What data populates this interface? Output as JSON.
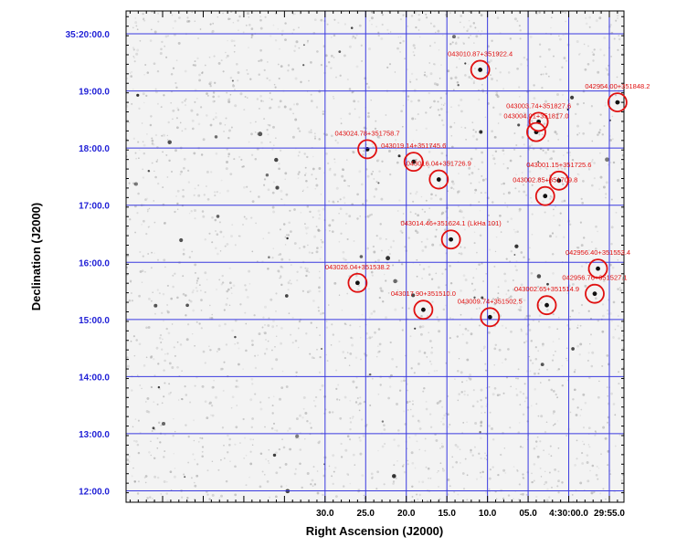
{
  "chart_data": {
    "type": "scatter",
    "title": "",
    "xlabel": "Right Ascension (J2000)",
    "ylabel": "Declination (J2000)",
    "x_units": "seconds of RA after 4h29m50s",
    "y_units": "arcminutes of Dec after 35d10m",
    "xlim": [
      64.5,
      3.2
    ],
    "ylim": [
      1.8,
      10.4
    ],
    "x_tick_labels": [
      "30.0",
      "25.0",
      "20.0",
      "15.0",
      "10.0",
      "05.0",
      "4:30:00.0",
      "29:55.0"
    ],
    "x_tick_values": [
      40,
      35,
      30,
      25,
      20,
      15,
      10,
      5
    ],
    "y_tick_labels": [
      "12:00.0",
      "13:00.0",
      "14:00.0",
      "15:00.0",
      "16:00.0",
      "17:00.0",
      "18:00.0",
      "19:00.0",
      "35:20:00.0"
    ],
    "y_tick_values": [
      2,
      3,
      4,
      5,
      6,
      7,
      8,
      9,
      10
    ],
    "grid": true,
    "background": "grayscale sky image",
    "marker": "red circle",
    "marker_color": "#e01010",
    "grid_color": "#3a3ae0",
    "sources": [
      {
        "label": "043010.87+351922.4",
        "x": 20.9,
        "y": 9.37
      },
      {
        "label": "042954.00+351848.2",
        "x": 4.0,
        "y": 8.8
      },
      {
        "label": "043003.74+351827.6",
        "x": 13.7,
        "y": 8.46
      },
      {
        "label": "043004.01+351817.0",
        "x": 14.0,
        "y": 8.28
      },
      {
        "label": "043024.78+351758.7",
        "x": 34.8,
        "y": 7.98
      },
      {
        "label": "043019.14+351745.6",
        "x": 29.1,
        "y": 7.76
      },
      {
        "label": "043016.04+351726.9",
        "x": 26.0,
        "y": 7.45
      },
      {
        "label": "043001.15+351725.6",
        "x": 11.2,
        "y": 7.43
      },
      {
        "label": "043002.85+351709.8",
        "x": 12.9,
        "y": 7.16
      },
      {
        "label": "043014.46+351624.1 (LkHa 101)",
        "x": 24.5,
        "y": 6.4
      },
      {
        "label": "042956.40+351553.4",
        "x": 6.4,
        "y": 5.89
      },
      {
        "label": "043026.04+351538.2",
        "x": 36.0,
        "y": 5.64
      },
      {
        "label": "042956.76+351527.1",
        "x": 6.8,
        "y": 5.45
      },
      {
        "label": "043002.65+351514.9",
        "x": 12.7,
        "y": 5.25
      },
      {
        "label": "043017.90+351510.0",
        "x": 27.9,
        "y": 5.17
      },
      {
        "label": "043009.74+351502.5",
        "x": 19.7,
        "y": 5.04
      }
    ]
  }
}
